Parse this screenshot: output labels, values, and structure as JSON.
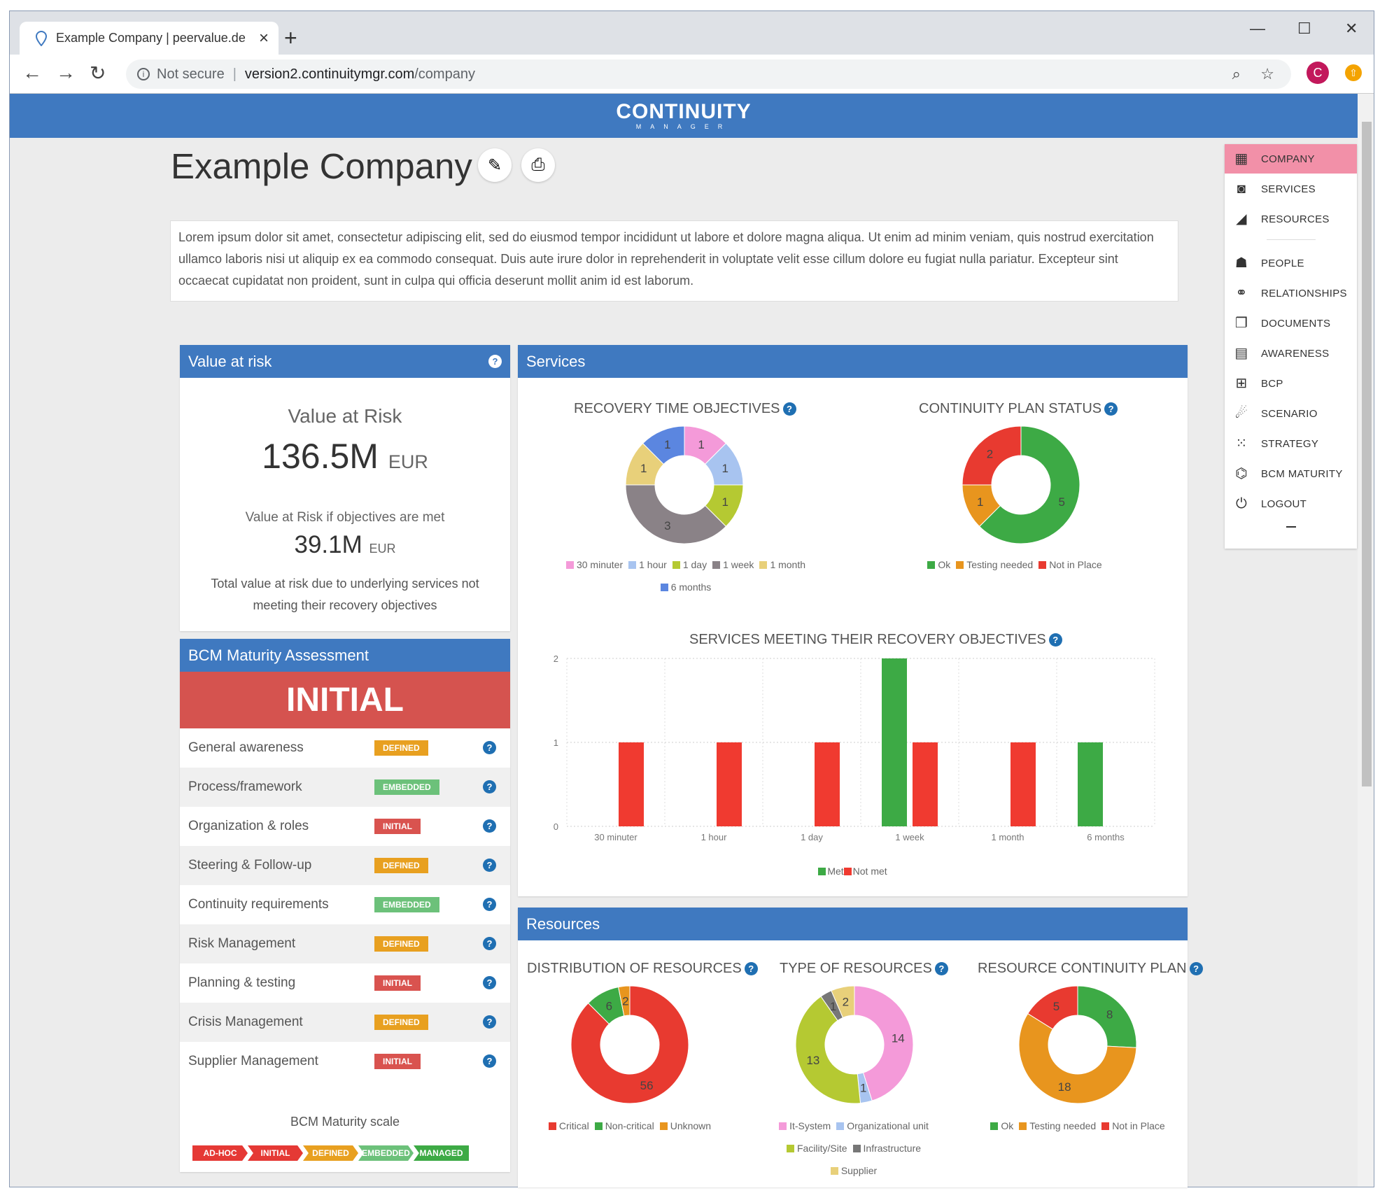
{
  "browser": {
    "tab_title": "Example Company | peervalue.de",
    "url_security": "Not secure",
    "url_host": "version2.continuitymgr.com",
    "url_path": "/company",
    "avatar_letter": "C"
  },
  "logo": {
    "line1": "CONTINUITY",
    "line2": "MANAGER"
  },
  "page": {
    "title": "Example Company",
    "description": "Lorem ipsum dolor sit amet, consectetur adipiscing elit, sed do eiusmod tempor incididunt ut labore et dolore magna aliqua. Ut enim ad minim veniam, quis nostrud exercitation ullamco laboris nisi ut aliquip ex ea commodo consequat. Duis aute irure dolor in reprehenderit in voluptate velit esse cillum dolore eu fugiat nulla pariatur. Excepteur sint occaecat cupidatat non proident, sunt in culpa qui officia deserunt mollit anim id est laborum."
  },
  "var": {
    "header": "Value at risk",
    "label": "Value at Risk",
    "value": "136.5M",
    "currency": "EUR",
    "met_label": "Value at Risk if objectives are met",
    "met_value": "39.1M",
    "met_currency": "EUR",
    "note": "Total value at risk due to underlying services not meeting their recovery objectives"
  },
  "maturity": {
    "header": "BCM Maturity Assessment",
    "level": "INITIAL",
    "rows": [
      {
        "label": "General awareness",
        "badge": "DEFINED"
      },
      {
        "label": "Process/framework",
        "badge": "EMBEDDED"
      },
      {
        "label": "Organization & roles",
        "badge": "INITIAL"
      },
      {
        "label": "Steering & Follow-up",
        "badge": "DEFINED"
      },
      {
        "label": "Continuity requirements",
        "badge": "EMBEDDED"
      },
      {
        "label": "Risk Management",
        "badge": "DEFINED"
      },
      {
        "label": "Planning & testing",
        "badge": "INITIAL"
      },
      {
        "label": "Crisis Management",
        "badge": "DEFINED"
      },
      {
        "label": "Supplier Management",
        "badge": "INITIAL"
      }
    ],
    "scale_title": "BCM Maturity scale",
    "scale": [
      "AD-HOC",
      "INITIAL",
      "DEFINED",
      "EMBEDDED",
      "MANAGED"
    ]
  },
  "badge_colors": {
    "DEFINED": "#e8a020",
    "EMBEDDED": "#6cc17a",
    "INITIAL": "#d9534f",
    "AD-HOC": "#e53935",
    "MANAGED": "#3daa45"
  },
  "services": {
    "header": "Services"
  },
  "resources": {
    "header": "Resources"
  },
  "sidebar": {
    "items": [
      {
        "label": "COMPANY",
        "icon": "building-icon"
      },
      {
        "label": "SERVICES",
        "icon": "services-icon"
      },
      {
        "label": "RESOURCES",
        "icon": "resources-icon"
      },
      {
        "label": "PEOPLE",
        "icon": "people-icon"
      },
      {
        "label": "RELATIONSHIPS",
        "icon": "relationships-icon"
      },
      {
        "label": "DOCUMENTS",
        "icon": "documents-icon"
      },
      {
        "label": "AWARENESS",
        "icon": "calendar-icon"
      },
      {
        "label": "BCP",
        "icon": "bcp-icon"
      },
      {
        "label": "SCENARIO",
        "icon": "scenario-icon"
      },
      {
        "label": "STRATEGY",
        "icon": "strategy-icon"
      },
      {
        "label": "BCM MATURITY",
        "icon": "maturity-icon"
      },
      {
        "label": "LOGOUT",
        "icon": "power-icon"
      }
    ]
  },
  "chart_data": [
    {
      "type": "pie",
      "title": "RECOVERY TIME OBJECTIVES",
      "labels": [
        "30 minuter",
        "1 hour",
        "1 day",
        "1 week",
        "1 month",
        "6 months"
      ],
      "values": [
        1,
        1,
        1,
        3,
        1,
        1
      ],
      "colors": [
        "#f49ad9",
        "#a8c4f0",
        "#b5c932",
        "#8a8287",
        "#e8d07a",
        "#5b86e0"
      ]
    },
    {
      "type": "pie",
      "title": "CONTINUITY PLAN STATUS",
      "labels": [
        "Ok",
        "Testing needed",
        "Not in Place"
      ],
      "values": [
        5,
        1,
        2
      ],
      "colors": [
        "#3daa45",
        "#e8951e",
        "#e83a30"
      ]
    },
    {
      "type": "bar",
      "title": "SERVICES MEETING THEIR RECOVERY OBJECTIVES",
      "categories": [
        "30 minuter",
        "1 hour",
        "1 day",
        "1 week",
        "1 month",
        "6 months"
      ],
      "series": [
        {
          "name": "Met",
          "values": [
            0,
            0,
            0,
            2,
            0,
            1
          ],
          "color": "#3daa45"
        },
        {
          "name": "Not met",
          "values": [
            1,
            1,
            1,
            1,
            1,
            0
          ],
          "color": "#f03a30"
        }
      ],
      "ylim": [
        0,
        2
      ],
      "yticks": [
        0,
        1,
        2
      ]
    },
    {
      "type": "pie",
      "title": "DISTRIBUTION OF RESOURCES",
      "labels": [
        "Critical",
        "Non-critical",
        "Unknown"
      ],
      "values": [
        56,
        6,
        2
      ],
      "colors": [
        "#e83a30",
        "#3daa45",
        "#e8951e"
      ]
    },
    {
      "type": "pie",
      "title": "TYPE OF RESOURCES",
      "labels": [
        "It-System",
        "Organizational unit",
        "Facility/Site",
        "Infrastructure",
        "Supplier"
      ],
      "values": [
        14,
        1,
        13,
        1,
        2
      ],
      "colors": [
        "#f49ad9",
        "#a8c4f0",
        "#b5c932",
        "#777777",
        "#e8d07a"
      ]
    },
    {
      "type": "pie",
      "title": "RESOURCE CONTINUITY PLAN",
      "labels": [
        "Ok",
        "Testing needed",
        "Not in Place"
      ],
      "values": [
        8,
        18,
        5
      ],
      "colors": [
        "#3daa45",
        "#e8951e",
        "#e83a30"
      ]
    }
  ]
}
